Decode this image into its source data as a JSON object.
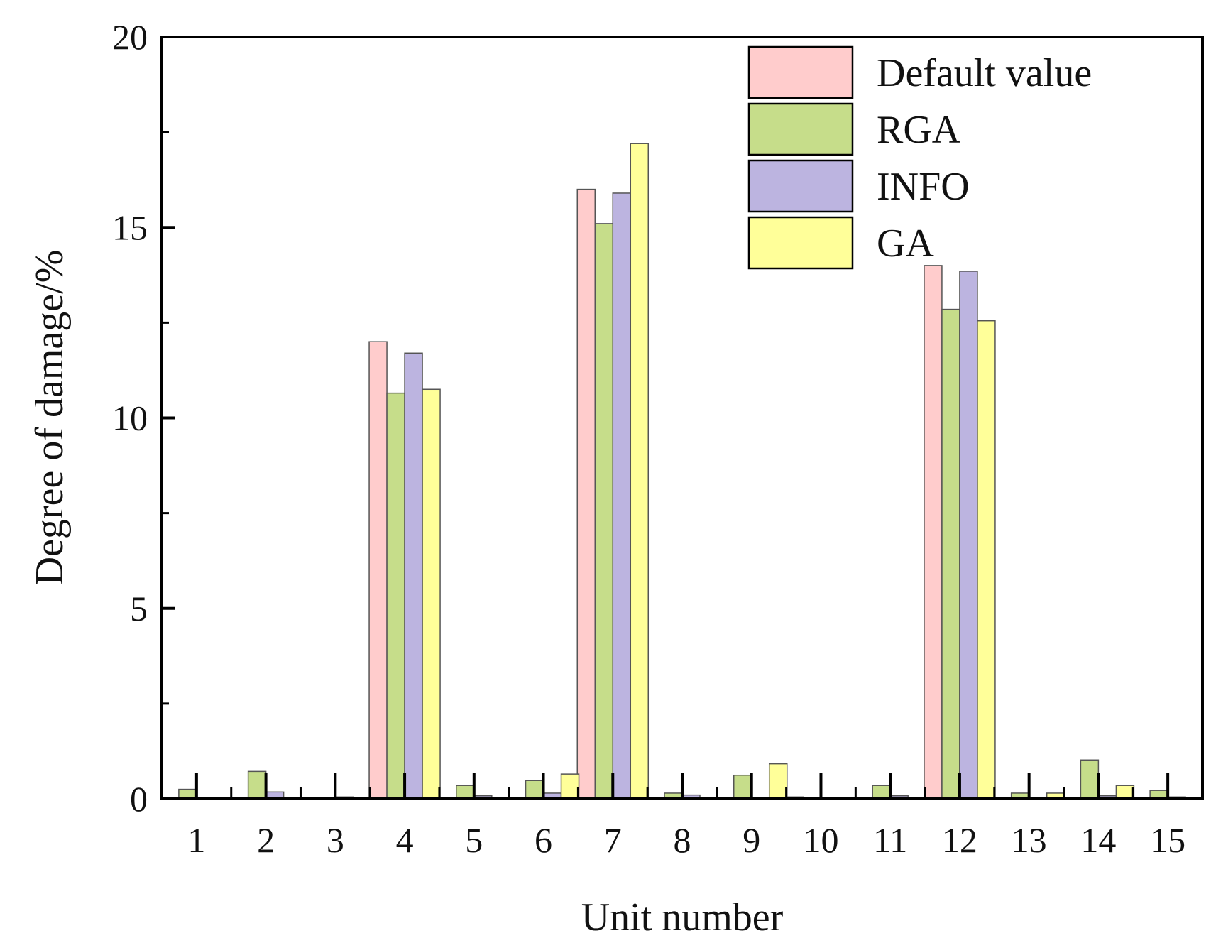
{
  "chart_data": {
    "type": "bar",
    "xlabel": "Unit number",
    "ylabel": "Degree of damage/%",
    "ylim": [
      0,
      20
    ],
    "yticks_major": [
      0,
      5,
      10,
      15,
      20
    ],
    "yticks_minor": [
      2.5,
      7.5,
      12.5,
      17.5
    ],
    "categories": [
      "1",
      "2",
      "3",
      "4",
      "5",
      "6",
      "7",
      "8",
      "9",
      "10",
      "11",
      "12",
      "13",
      "14",
      "15"
    ],
    "legend_position": "top-right",
    "grid": false,
    "series": [
      {
        "name": "Default value",
        "color": "#ffcccc",
        "values": [
          0,
          0,
          0,
          12.0,
          0,
          0,
          16.0,
          0,
          0,
          0.05,
          0,
          14.0,
          0,
          0,
          0
        ]
      },
      {
        "name": "RGA",
        "color": "#c6dd8a",
        "values": [
          0.25,
          0.72,
          0,
          10.65,
          0.35,
          0.48,
          15.1,
          0.15,
          0.62,
          0,
          0.35,
          12.85,
          0.15,
          1.02,
          0.22
        ]
      },
      {
        "name": "INFO",
        "color": "#bcb4e0",
        "values": [
          0,
          0.18,
          0.05,
          11.7,
          0.08,
          0.15,
          15.9,
          0.1,
          0,
          0,
          0.08,
          13.85,
          0,
          0.08,
          0.05
        ]
      },
      {
        "name": "GA",
        "color": "#ffff99",
        "values": [
          0,
          0,
          0,
          10.75,
          0,
          0.65,
          17.2,
          0,
          0.92,
          0,
          0,
          12.55,
          0.15,
          0.35,
          0
        ]
      }
    ]
  }
}
